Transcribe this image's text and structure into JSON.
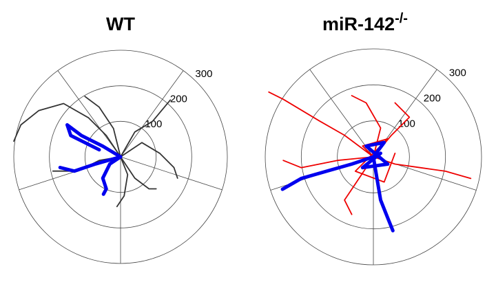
{
  "chart_data": [
    {
      "type": "polar",
      "title": "WT",
      "rlim": [
        0,
        300
      ],
      "rticks": [
        100,
        200,
        300
      ],
      "grid": true,
      "series": [
        {
          "color": "#333333",
          "x": [
            0,
            -40,
            -90,
            -160,
            -230,
            -280,
            -300
          ],
          "y": [
            0,
            60,
            110,
            150,
            130,
            90,
            44
          ]
        },
        {
          "color": "#333333",
          "x": [
            0,
            -20,
            -60,
            -100
          ],
          "y": [
            0,
            80,
            140,
            170
          ]
        },
        {
          "color": "#333333",
          "x": [
            0,
            60,
            110,
            150,
            160
          ],
          "y": [
            0,
            40,
            10,
            -30,
            -60
          ]
        },
        {
          "color": "#333333",
          "x": [
            0,
            20,
            10,
            -10
          ],
          "y": [
            0,
            -50,
            -110,
            -140
          ]
        },
        {
          "color": "#333333",
          "x": [
            0,
            -60,
            -120,
            -190
          ],
          "y": [
            0,
            -10,
            -40,
            -40
          ]
        },
        {
          "color": "#333333",
          "x": [
            0,
            40,
            80,
            100
          ],
          "y": [
            0,
            -60,
            -90,
            -90
          ]
        },
        {
          "color": "#333333",
          "x": [
            0,
            40,
            90,
            140
          ],
          "y": [
            0,
            70,
            100,
            160
          ]
        },
        {
          "color": "#0000ee",
          "x": [
            0,
            -50,
            -110,
            -150,
            -140,
            -100,
            -60
          ],
          "y": [
            0,
            30,
            60,
            90,
            60,
            40,
            20
          ]
        },
        {
          "color": "#0000ee",
          "x": [
            0,
            -30,
            -50,
            -40,
            -48
          ],
          "y": [
            0,
            -20,
            -60,
            -90,
            -105
          ]
        },
        {
          "color": "#0000ee",
          "x": [
            0,
            -70,
            -130,
            -170
          ],
          "y": [
            0,
            -20,
            -40,
            -30
          ]
        }
      ]
    },
    {
      "type": "polar",
      "title": "miR-142",
      "title_superscript": "-/-",
      "rlim": [
        0,
        300
      ],
      "rticks": [
        100,
        200,
        300
      ],
      "grid": true,
      "series": [
        {
          "color": "#ee0000",
          "x": [
            0,
            -80,
            -150,
            -250,
            -290
          ],
          "y": [
            0,
            60,
            100,
            160,
            180
          ]
        },
        {
          "color": "#ee0000",
          "x": [
            0,
            60,
            130,
            200,
            270
          ],
          "y": [
            0,
            -20,
            -30,
            -40,
            -60
          ]
        },
        {
          "color": "#ee0000",
          "x": [
            0,
            -40,
            -80,
            -60
          ],
          "y": [
            0,
            -60,
            -120,
            -160
          ]
        },
        {
          "color": "#ee0000",
          "x": [
            0,
            20,
            -20,
            -60
          ],
          "y": [
            0,
            80,
            150,
            170
          ]
        },
        {
          "color": "#ee0000",
          "x": [
            0,
            -100,
            -200,
            -250
          ],
          "y": [
            0,
            -10,
            -30,
            -10
          ]
        },
        {
          "color": "#ee0000",
          "x": [
            0,
            50,
            100,
            60
          ],
          "y": [
            0,
            60,
            110,
            150
          ]
        },
        {
          "color": "#ee0000",
          "x": [
            0,
            -30,
            40,
            -50,
            30,
            60
          ],
          "y": [
            0,
            30,
            50,
            -40,
            -70,
            10
          ]
        },
        {
          "color": "#0000ee",
          "x": [
            0,
            -60,
            -130,
            -200,
            -252
          ],
          "y": [
            0,
            -20,
            -40,
            -60,
            -90
          ]
        },
        {
          "color": "#0000ee",
          "x": [
            0,
            10,
            20,
            40,
            54
          ],
          "y": [
            0,
            -60,
            -120,
            -170,
            -205
          ]
        },
        {
          "color": "#0000ee",
          "x": [
            0,
            30,
            -20,
            40,
            -30,
            20
          ],
          "y": [
            0,
            40,
            30,
            -20,
            -30,
            10
          ]
        }
      ]
    }
  ]
}
